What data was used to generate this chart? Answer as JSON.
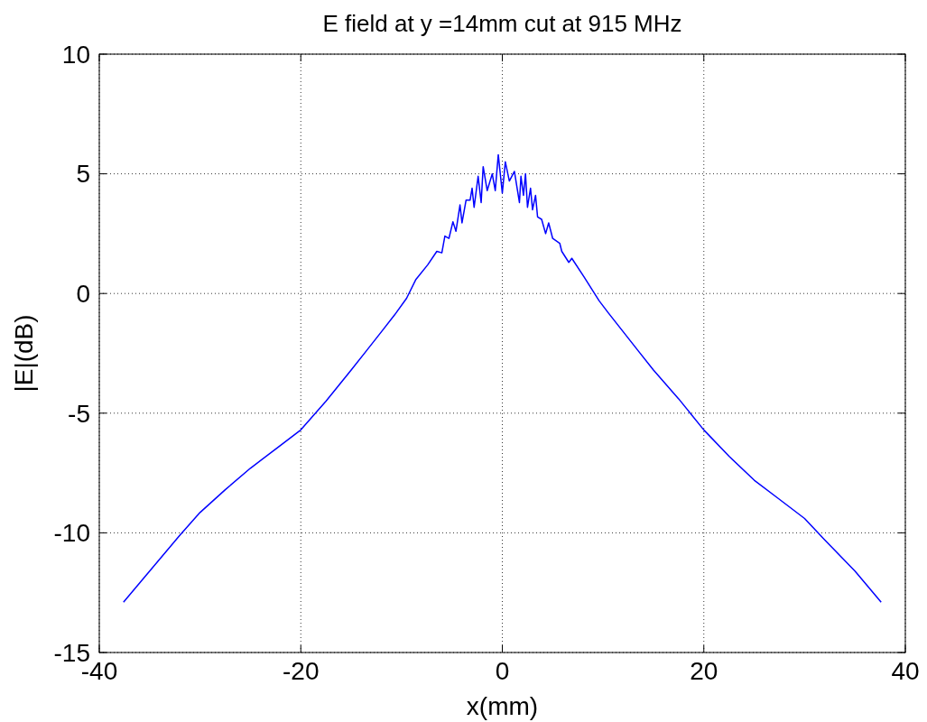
{
  "chart_data": {
    "type": "line",
    "title": "E field at y =14mm cut at 915 MHz",
    "xlabel": "x(mm)",
    "ylabel": "|E|(dB)",
    "xlim": [
      -40,
      40
    ],
    "ylim": [
      -15,
      10
    ],
    "xticks": [
      -40,
      -20,
      0,
      20,
      40
    ],
    "yticks": [
      -15,
      -10,
      -5,
      0,
      5,
      10
    ],
    "grid": true,
    "line_style": "solid",
    "marker": "none",
    "series": [
      {
        "color": "#0000ff",
        "x": [
          -37.6,
          -35,
          -32,
          -30,
          -27.5,
          -25,
          -22.5,
          -20,
          -17.5,
          -15,
          -13.5,
          -12,
          -10.7,
          -9.5,
          -8.6,
          -7.4,
          -6.5,
          -6.0,
          -5.7,
          -5.3,
          -4.9,
          -4.6,
          -4.2,
          -4.0,
          -3.6,
          -3.2,
          -3.0,
          -2.8,
          -2.4,
          -2.1,
          -1.9,
          -1.5,
          -1.0,
          -0.7,
          -0.4,
          0.0,
          0.3,
          0.7,
          1.2,
          1.7,
          1.85,
          2.1,
          2.3,
          2.5,
          2.8,
          3.0,
          3.3,
          3.5,
          3.9,
          4.3,
          4.6,
          5.0,
          5.7,
          5.9,
          6.6,
          6.9,
          8.1,
          9.6,
          10.5,
          12,
          13.5,
          15,
          17.5,
          20,
          22.5,
          25,
          27.5,
          30,
          32,
          35,
          37.6
        ],
        "values": [
          -12.9,
          -11.6,
          -10.1,
          -9.15,
          -8.2,
          -7.3,
          -6.5,
          -5.7,
          -4.5,
          -3.2,
          -2.4,
          -1.6,
          -0.9,
          -0.2,
          0.57,
          1.2,
          1.76,
          1.7,
          2.4,
          2.3,
          3.0,
          2.6,
          3.7,
          2.95,
          3.9,
          3.9,
          4.4,
          3.6,
          4.9,
          3.8,
          5.3,
          4.3,
          5.0,
          4.3,
          5.8,
          4.2,
          5.5,
          4.7,
          5.1,
          3.8,
          4.9,
          4.1,
          5.0,
          3.6,
          4.4,
          3.5,
          4.1,
          3.2,
          3.1,
          2.5,
          2.95,
          2.3,
          2.1,
          1.76,
          1.3,
          1.47,
          0.7,
          -0.3,
          -0.8,
          -1.6,
          -2.4,
          -3.2,
          -4.4,
          -5.7,
          -6.8,
          -7.8,
          -8.6,
          -9.4,
          -10.3,
          -11.6,
          -12.9
        ]
      }
    ]
  }
}
